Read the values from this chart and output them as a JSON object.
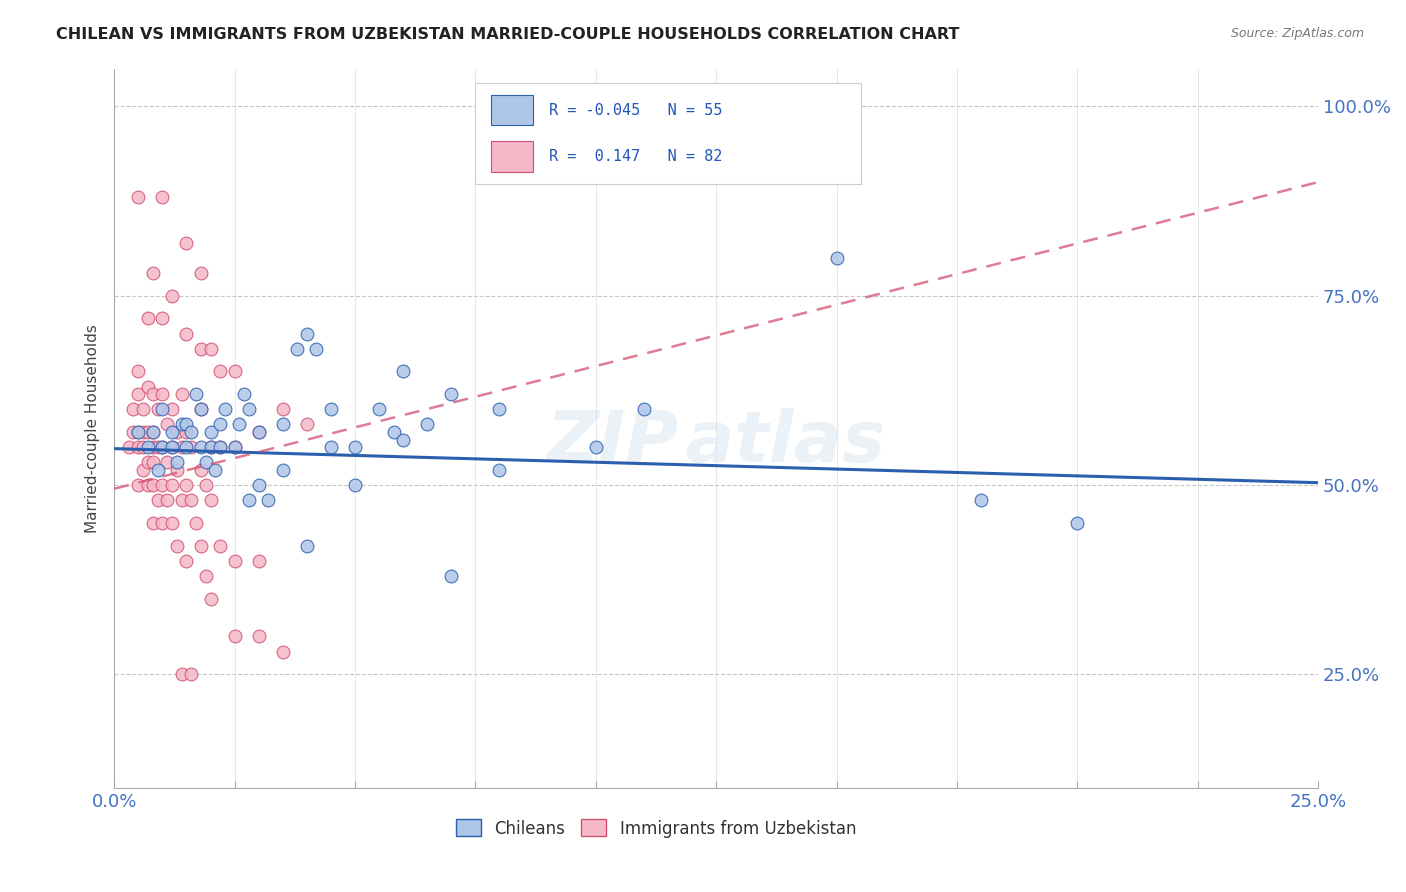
{
  "title": "CHILEAN VS IMMIGRANTS FROM UZBEKISTAN MARRIED-COUPLE HOUSEHOLDS CORRELATION CHART",
  "source": "Source: ZipAtlas.com",
  "ylabel": "Married-couple Households",
  "xlim": [
    0.0,
    0.25
  ],
  "ylim": [
    0.1,
    1.05
  ],
  "yticks": [
    0.25,
    0.5,
    0.75,
    1.0
  ],
  "ytick_labels": [
    "25.0%",
    "50.0%",
    "75.0%",
    "100.0%"
  ],
  "xtick_vals": [
    0.0,
    0.025,
    0.05,
    0.075,
    0.1,
    0.125,
    0.15,
    0.175,
    0.2,
    0.225,
    0.25
  ],
  "color_chilean": "#aec6e8",
  "color_uzbek": "#f4b8c8",
  "line_color_chilean": "#2b5fad",
  "line_color_uzbek": "#d45070",
  "R_chilean": -0.045,
  "N_chilean": 55,
  "R_uzbek": 0.147,
  "N_uzbek": 82,
  "chilean_trend": [
    0.548,
    0.503
  ],
  "uzbek_trend": [
    0.495,
    0.9
  ],
  "chilean_points": [
    [
      0.005,
      0.57
    ],
    [
      0.007,
      0.55
    ],
    [
      0.008,
      0.57
    ],
    [
      0.009,
      0.52
    ],
    [
      0.01,
      0.55
    ],
    [
      0.01,
      0.6
    ],
    [
      0.012,
      0.55
    ],
    [
      0.012,
      0.57
    ],
    [
      0.013,
      0.53
    ],
    [
      0.014,
      0.58
    ],
    [
      0.015,
      0.55
    ],
    [
      0.015,
      0.58
    ],
    [
      0.016,
      0.57
    ],
    [
      0.017,
      0.62
    ],
    [
      0.018,
      0.55
    ],
    [
      0.018,
      0.6
    ],
    [
      0.019,
      0.53
    ],
    [
      0.02,
      0.55
    ],
    [
      0.02,
      0.57
    ],
    [
      0.021,
      0.52
    ],
    [
      0.022,
      0.55
    ],
    [
      0.022,
      0.58
    ],
    [
      0.023,
      0.6
    ],
    [
      0.025,
      0.55
    ],
    [
      0.026,
      0.58
    ],
    [
      0.027,
      0.62
    ],
    [
      0.028,
      0.48
    ],
    [
      0.028,
      0.6
    ],
    [
      0.03,
      0.5
    ],
    [
      0.03,
      0.57
    ],
    [
      0.032,
      0.48
    ],
    [
      0.035,
      0.52
    ],
    [
      0.035,
      0.58
    ],
    [
      0.038,
      0.68
    ],
    [
      0.04,
      0.42
    ],
    [
      0.04,
      0.7
    ],
    [
      0.042,
      0.68
    ],
    [
      0.045,
      0.55
    ],
    [
      0.045,
      0.6
    ],
    [
      0.05,
      0.5
    ],
    [
      0.05,
      0.55
    ],
    [
      0.055,
      0.6
    ],
    [
      0.058,
      0.57
    ],
    [
      0.06,
      0.56
    ],
    [
      0.06,
      0.65
    ],
    [
      0.065,
      0.58
    ],
    [
      0.07,
      0.38
    ],
    [
      0.07,
      0.62
    ],
    [
      0.08,
      0.52
    ],
    [
      0.08,
      0.6
    ],
    [
      0.1,
      0.55
    ],
    [
      0.11,
      0.6
    ],
    [
      0.15,
      0.8
    ],
    [
      0.18,
      0.48
    ],
    [
      0.2,
      0.45
    ]
  ],
  "uzbek_points": [
    [
      0.003,
      0.55
    ],
    [
      0.004,
      0.57
    ],
    [
      0.004,
      0.6
    ],
    [
      0.005,
      0.5
    ],
    [
      0.005,
      0.55
    ],
    [
      0.005,
      0.57
    ],
    [
      0.005,
      0.62
    ],
    [
      0.005,
      0.65
    ],
    [
      0.005,
      0.88
    ],
    [
      0.006,
      0.52
    ],
    [
      0.006,
      0.55
    ],
    [
      0.006,
      0.57
    ],
    [
      0.006,
      0.6
    ],
    [
      0.007,
      0.5
    ],
    [
      0.007,
      0.53
    ],
    [
      0.007,
      0.57
    ],
    [
      0.007,
      0.63
    ],
    [
      0.007,
      0.72
    ],
    [
      0.008,
      0.45
    ],
    [
      0.008,
      0.5
    ],
    [
      0.008,
      0.53
    ],
    [
      0.008,
      0.55
    ],
    [
      0.008,
      0.57
    ],
    [
      0.008,
      0.62
    ],
    [
      0.008,
      0.78
    ],
    [
      0.009,
      0.48
    ],
    [
      0.009,
      0.55
    ],
    [
      0.009,
      0.6
    ],
    [
      0.01,
      0.45
    ],
    [
      0.01,
      0.5
    ],
    [
      0.01,
      0.55
    ],
    [
      0.01,
      0.62
    ],
    [
      0.01,
      0.72
    ],
    [
      0.01,
      0.88
    ],
    [
      0.011,
      0.48
    ],
    [
      0.011,
      0.53
    ],
    [
      0.011,
      0.58
    ],
    [
      0.012,
      0.45
    ],
    [
      0.012,
      0.5
    ],
    [
      0.012,
      0.55
    ],
    [
      0.012,
      0.6
    ],
    [
      0.012,
      0.75
    ],
    [
      0.013,
      0.42
    ],
    [
      0.013,
      0.52
    ],
    [
      0.013,
      0.57
    ],
    [
      0.014,
      0.48
    ],
    [
      0.014,
      0.55
    ],
    [
      0.014,
      0.62
    ],
    [
      0.015,
      0.4
    ],
    [
      0.015,
      0.5
    ],
    [
      0.015,
      0.57
    ],
    [
      0.015,
      0.7
    ],
    [
      0.015,
      0.82
    ],
    [
      0.016,
      0.48
    ],
    [
      0.016,
      0.55
    ],
    [
      0.017,
      0.45
    ],
    [
      0.018,
      0.42
    ],
    [
      0.018,
      0.52
    ],
    [
      0.018,
      0.6
    ],
    [
      0.018,
      0.68
    ],
    [
      0.018,
      0.78
    ],
    [
      0.019,
      0.38
    ],
    [
      0.019,
      0.5
    ],
    [
      0.02,
      0.35
    ],
    [
      0.02,
      0.48
    ],
    [
      0.02,
      0.55
    ],
    [
      0.02,
      0.68
    ],
    [
      0.022,
      0.42
    ],
    [
      0.022,
      0.55
    ],
    [
      0.022,
      0.65
    ],
    [
      0.025,
      0.4
    ],
    [
      0.025,
      0.55
    ],
    [
      0.025,
      0.65
    ],
    [
      0.03,
      0.4
    ],
    [
      0.03,
      0.57
    ],
    [
      0.035,
      0.28
    ],
    [
      0.035,
      0.6
    ],
    [
      0.04,
      0.58
    ],
    [
      0.014,
      0.25
    ],
    [
      0.016,
      0.25
    ],
    [
      0.025,
      0.3
    ],
    [
      0.03,
      0.3
    ]
  ]
}
